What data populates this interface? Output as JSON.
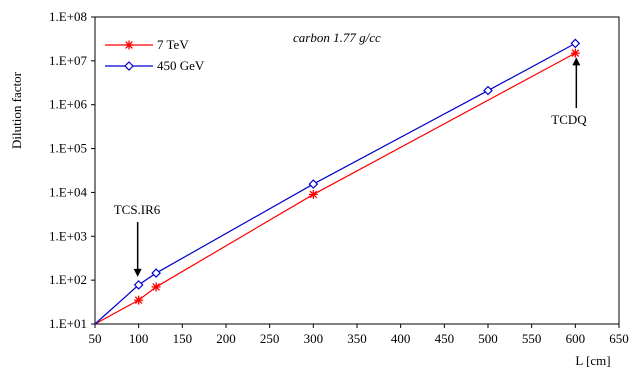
{
  "chart_data": {
    "type": "line",
    "xlabel": "L [cm]",
    "ylabel": "Dilution factor",
    "xlim": [
      50,
      650
    ],
    "ylim_log10": [
      1,
      8
    ],
    "yscale": "log",
    "x_ticks": [
      50,
      100,
      150,
      200,
      250,
      300,
      350,
      400,
      450,
      500,
      550,
      600,
      650
    ],
    "y_tick_labels": [
      "1.E+01",
      "1.E+02",
      "1.E+03",
      "1.E+04",
      "1.E+05",
      "1.E+06",
      "1.E+07",
      "1.E+08"
    ],
    "grid": false,
    "legend_position": "top-left",
    "series": [
      {
        "name": "7 TeV",
        "color": "#ff0000",
        "marker": "asterisk",
        "x": [
          50,
          100,
          120,
          300,
          600
        ],
        "y": [
          10,
          35,
          70,
          9000,
          15000000
        ]
      },
      {
        "name": "450 GeV",
        "color": "#0000cc",
        "marker": "diamond",
        "x": [
          50,
          100,
          120,
          300,
          500,
          600
        ],
        "y": [
          10,
          78,
          145,
          15500,
          2100000,
          25000000
        ]
      }
    ],
    "annotations": [
      {
        "text": "carbon 1.77 g/cc",
        "style": "italic"
      },
      {
        "text": "TCS.IR6",
        "arrow_to_x": 100,
        "arrow_to_y": 78
      },
      {
        "text": "TCDQ",
        "arrow_to_x": 600,
        "arrow_to_y": 25000000
      }
    ]
  }
}
